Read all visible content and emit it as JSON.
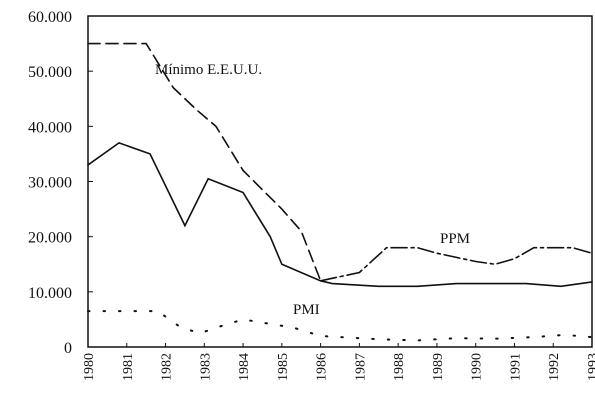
{
  "chart_data": {
    "type": "line",
    "xlim": [
      1980,
      1993
    ],
    "xticks": [
      1980,
      1981,
      1982,
      1983,
      1984,
      1985,
      1986,
      1987,
      1988,
      1989,
      1990,
      1991,
      1992,
      1993
    ],
    "ylim": [
      0,
      60000
    ],
    "yticks": [
      0,
      {
        "value": 10000,
        "label": "10.000"
      },
      {
        "value": 20000,
        "label": "20.000"
      },
      {
        "value": 30000,
        "label": "30.000"
      },
      {
        "value": 40000,
        "label": "40.000"
      },
      {
        "value": 50000,
        "label": "50.000"
      },
      {
        "value": 60000,
        "label": "60.000"
      }
    ],
    "series": [
      {
        "color": "#111",
        "style": "solid",
        "x": [
          1980,
          1980.8,
          1981.6,
          1982.5,
          1983.1,
          1984,
          1984.7,
          1985,
          1986,
          1986.3,
          1987.5,
          1988.5,
          1989.5,
          1990.5,
          1991.3,
          1992.2,
          1993
        ],
        "values": [
          33000,
          37000,
          35000,
          22000,
          30500,
          28000,
          20000,
          15000,
          12000,
          11500,
          11000,
          11000,
          11500,
          11500,
          11500,
          11000,
          11800
        ]
      },
      {
        "name": "Mínimo E.E.U.U.",
        "color": "#111",
        "style": "dashed",
        "x": [
          1980,
          1981.5,
          1982.2,
          1982.8,
          1983.3,
          1984,
          1985,
          1985.5,
          1986
        ],
        "values": [
          55000,
          55000,
          47000,
          43000,
          40000,
          32000,
          25000,
          21000,
          12000
        ]
      },
      {
        "name": "PPM",
        "color": "#111",
        "style": "dashdot",
        "x": [
          1986,
          1987,
          1987.7,
          1988.5,
          1989,
          1990,
          1990.5,
          1991,
          1991.5,
          1992.5,
          1993
        ],
        "values": [
          12000,
          13500,
          18000,
          18000,
          17000,
          15500,
          15000,
          16000,
          18000,
          18000,
          17000
        ]
      },
      {
        "name": "PMI",
        "color": "#111",
        "style": "dotted",
        "x": [
          1980,
          1981,
          1981.8,
          1982.4,
          1982.9,
          1983.3,
          1984,
          1985.3,
          1986,
          1986.5,
          1987.5,
          1988.5,
          1989.5,
          1990.5,
          1991.5,
          1992.3,
          1993
        ],
        "values": [
          6500,
          6500,
          6500,
          3500,
          2500,
          3500,
          5000,
          3500,
          2000,
          1800,
          1400,
          1200,
          1600,
          1500,
          1800,
          2200,
          1800
        ]
      }
    ]
  }
}
